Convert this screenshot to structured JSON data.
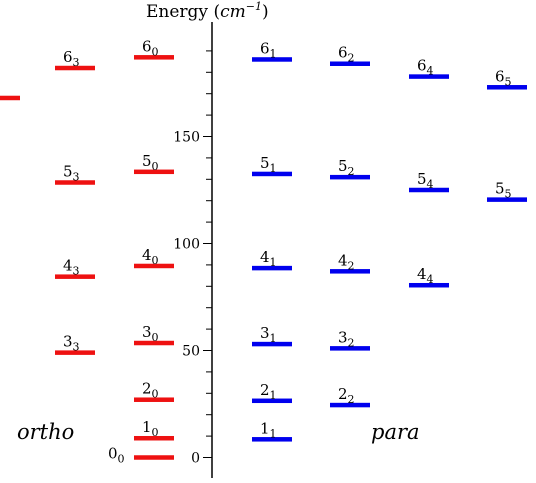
{
  "chart_data": {
    "type": "energy-level-diagram",
    "title": "Energy",
    "unit_base": "cm",
    "unit_exp": "−1",
    "ylim": [
      -10,
      205
    ],
    "yticks": [
      0,
      50,
      100,
      150
    ],
    "minor_tick_step": 10,
    "colors": {
      "ortho": "#ee1111",
      "para": "#0000ee"
    },
    "groups": {
      "ortho": "ortho",
      "para": "para"
    },
    "levels": [
      {
        "id": "lvl-0-0",
        "group": "ortho",
        "col": 1,
        "n": "0",
        "k": "0",
        "energy": 0
      },
      {
        "id": "lvl-1-0",
        "group": "ortho",
        "col": 1,
        "n": "1",
        "k": "0",
        "energy": 9
      },
      {
        "id": "lvl-2-0",
        "group": "ortho",
        "col": 1,
        "n": "2",
        "k": "0",
        "energy": 27
      },
      {
        "id": "lvl-3-0",
        "group": "ortho",
        "col": 1,
        "n": "3",
        "k": "0",
        "energy": 53.5
      },
      {
        "id": "lvl-4-0",
        "group": "ortho",
        "col": 1,
        "n": "4",
        "k": "0",
        "energy": 89.5
      },
      {
        "id": "lvl-5-0",
        "group": "ortho",
        "col": 1,
        "n": "5",
        "k": "0",
        "energy": 133.5
      },
      {
        "id": "lvl-6-0",
        "group": "ortho",
        "col": 1,
        "n": "6",
        "k": "0",
        "energy": 187
      },
      {
        "id": "lvl-3-3",
        "group": "ortho",
        "col": 0,
        "n": "3",
        "k": "3",
        "energy": 49
      },
      {
        "id": "lvl-4-3",
        "group": "ortho",
        "col": 0,
        "n": "4",
        "k": "3",
        "energy": 84.5
      },
      {
        "id": "lvl-5-3",
        "group": "ortho",
        "col": 0,
        "n": "5",
        "k": "3",
        "energy": 128.5
      },
      {
        "id": "lvl-6-3",
        "group": "ortho",
        "col": 0,
        "n": "6",
        "k": "3",
        "energy": 182
      },
      {
        "id": "lvl-6-6",
        "group": "ortho",
        "col": -1,
        "n": "",
        "k": "",
        "energy": 168
      },
      {
        "id": "lvl-1-1",
        "group": "para",
        "col": 0,
        "n": "1",
        "k": "1",
        "energy": 8.5
      },
      {
        "id": "lvl-2-1",
        "group": "para",
        "col": 0,
        "n": "2",
        "k": "1",
        "energy": 26.5
      },
      {
        "id": "lvl-3-1",
        "group": "para",
        "col": 0,
        "n": "3",
        "k": "1",
        "energy": 53
      },
      {
        "id": "lvl-4-1",
        "group": "para",
        "col": 0,
        "n": "4",
        "k": "1",
        "energy": 88.5
      },
      {
        "id": "lvl-5-1",
        "group": "para",
        "col": 0,
        "n": "5",
        "k": "1",
        "energy": 132.5
      },
      {
        "id": "lvl-6-1",
        "group": "para",
        "col": 0,
        "n": "6",
        "k": "1",
        "energy": 186
      },
      {
        "id": "lvl-2-2",
        "group": "para",
        "col": 1,
        "n": "2",
        "k": "2",
        "energy": 24.5
      },
      {
        "id": "lvl-3-2",
        "group": "para",
        "col": 1,
        "n": "3",
        "k": "2",
        "energy": 51
      },
      {
        "id": "lvl-4-2",
        "group": "para",
        "col": 1,
        "n": "4",
        "k": "2",
        "energy": 87
      },
      {
        "id": "lvl-5-2",
        "group": "para",
        "col": 1,
        "n": "5",
        "k": "2",
        "energy": 131
      },
      {
        "id": "lvl-6-2",
        "group": "para",
        "col": 1,
        "n": "6",
        "k": "2",
        "energy": 184
      },
      {
        "id": "lvl-4-4",
        "group": "para",
        "col": 2,
        "n": "4",
        "k": "4",
        "energy": 80.5
      },
      {
        "id": "lvl-5-4",
        "group": "para",
        "col": 2,
        "n": "5",
        "k": "4",
        "energy": 125
      },
      {
        "id": "lvl-6-4",
        "group": "para",
        "col": 2,
        "n": "6",
        "k": "4",
        "energy": 178
      },
      {
        "id": "lvl-5-5",
        "group": "para",
        "col": 3,
        "n": "5",
        "k": "5",
        "energy": 120.5
      },
      {
        "id": "lvl-6-5",
        "group": "para",
        "col": 3,
        "n": "6",
        "k": "5",
        "energy": 173
      }
    ]
  }
}
